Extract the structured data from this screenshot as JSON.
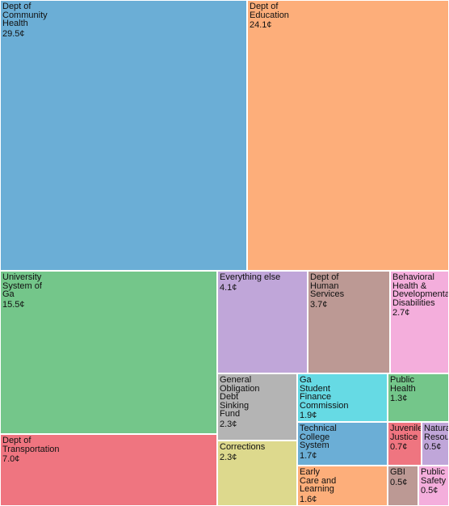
{
  "chart_data": {
    "type": "treemap",
    "unit": "¢",
    "items": [
      {
        "label": "Dept of\nCommunity\nHealth",
        "value": 29.5,
        "display": "29.5¢",
        "color": "#6BAED6"
      },
      {
        "label": "Dept of\nEducation",
        "value": 24.1,
        "display": "24.1¢",
        "color": "#FDAE7A"
      },
      {
        "label": "University\nSystem of\nGa",
        "value": 15.5,
        "display": "15.5¢",
        "color": "#74C68A"
      },
      {
        "label": "Dept of\nTransportation",
        "value": 7.0,
        "display": "7.0¢",
        "color": "#EF7580"
      },
      {
        "label": "Everything else",
        "value": 4.1,
        "display": "4.1¢",
        "color": "#C0A6D9"
      },
      {
        "label": "Dept of\nHuman\nServices",
        "value": 3.7,
        "display": "3.7¢",
        "color": "#BC9994"
      },
      {
        "label": "Behavioral\nHealth &\nDevelopmental\nDisabilities",
        "value": 2.7,
        "display": "2.7¢",
        "color": "#F4AEDC"
      },
      {
        "label": "General\nObligation\nDebt\nSinking\nFund",
        "value": 2.3,
        "display": "2.3¢",
        "color": "#B4B4B4"
      },
      {
        "label": "Corrections",
        "value": 2.3,
        "display": "2.3¢",
        "color": "#DDD98D"
      },
      {
        "label": "Ga\nStudent\nFinance\nCommission",
        "value": 1.9,
        "display": "1.9¢",
        "color": "#66DAE4"
      },
      {
        "label": "Public\nHealth",
        "value": 1.3,
        "display": "1.3¢",
        "color": "#74C68A"
      },
      {
        "label": "Technical\nCollege\nSystem",
        "value": 1.7,
        "display": "1.7¢",
        "color": "#6BAED6"
      },
      {
        "label": "Juvenile\nJustice",
        "value": 0.7,
        "display": "0.7¢",
        "color": "#EF7580"
      },
      {
        "label": "Natural\nResources",
        "value": 0.5,
        "display": "0.5¢",
        "color": "#C0A6D9"
      },
      {
        "label": "Early\nCare and\nLearning",
        "value": 1.6,
        "display": "1.6¢",
        "color": "#FDAE7A"
      },
      {
        "label": "GBI",
        "value": 0.5,
        "display": "0.5¢",
        "color": "#BC9994"
      },
      {
        "label": "Public\nSafety",
        "value": 0.5,
        "display": "0.5¢",
        "color": "#F4AEDC"
      }
    ]
  }
}
